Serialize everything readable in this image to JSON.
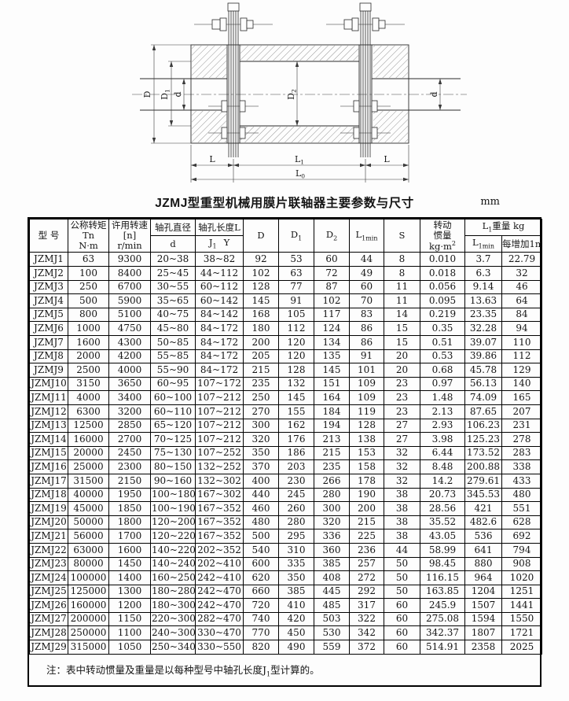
{
  "title": "JZMJ型重型机械用膜片联轴器主要参数与尺寸",
  "unit": "mm",
  "drawing": {
    "dim_D": "D",
    "dim_D1_base": "D",
    "dim_D1_sub": "1",
    "dim_d_left": "d",
    "dim_D2_base": "D",
    "dim_D2_sub": "2",
    "dim_d_right": "d",
    "dim_L_left": "L",
    "dim_L1_base": "L",
    "dim_L1_sub": "1",
    "dim_L_right": "L",
    "dim_L0_base": "L",
    "dim_L0_sub": "0"
  },
  "table": {
    "header": {
      "model": "型 号",
      "torque_line1": "公称转矩",
      "torque_line2": "Tn",
      "torque_line3": "N·m",
      "speed_line1": "许用转速",
      "speed_line2": "[n]",
      "speed_line3": "r/min",
      "bore_dia": "轴孔直径",
      "bore_dia_sub": "d",
      "bore_len": "轴孔长度L",
      "bore_len_j": "J",
      "bore_len_j_sub": "1",
      "bore_len_y": "Y",
      "D": "D",
      "D1_base": "D",
      "D1_sub": "1",
      "D2_base": "D",
      "D2_sub": "2",
      "L1min_base": "L",
      "L1min_sub": "1min",
      "S": "S",
      "inertia_line1": "转动",
      "inertia_line2": "惯量",
      "inertia_unit_base": "kg·m",
      "inertia_unit_sup": "2",
      "weight_group_base": "L",
      "weight_group_sub": "1",
      "weight_group_rest": "重量 kg",
      "weight_min_base": "L",
      "weight_min_sub": "1min",
      "weight_per_m": "每增加1m"
    },
    "rows": [
      [
        "JZMJ1",
        "63",
        "9300",
        "20~38",
        "38~82",
        "92",
        "53",
        "60",
        "44",
        "8",
        "0.010",
        "3.7",
        "22.79"
      ],
      [
        "JZMJ2",
        "100",
        "8400",
        "25~45",
        "44~112",
        "102",
        "63",
        "72",
        "49",
        "8",
        "0.018",
        "6.3",
        "32"
      ],
      [
        "JZMJ3",
        "250",
        "6700",
        "30~55",
        "60~112",
        "128",
        "77",
        "87",
        "60",
        "11",
        "0.056",
        "9.14",
        "46"
      ],
      [
        "JZMJ4",
        "500",
        "5900",
        "35~65",
        "60~142",
        "145",
        "91",
        "102",
        "70",
        "11",
        "0.095",
        "13.63",
        "64"
      ],
      [
        "JZMJ5",
        "800",
        "5100",
        "40~75",
        "84~142",
        "168",
        "105",
        "117",
        "83",
        "14",
        "0.219",
        "23.35",
        "84"
      ],
      [
        "JZMJ6",
        "1000",
        "4750",
        "45~80",
        "84~172",
        "180",
        "112",
        "124",
        "86",
        "15",
        "0.35",
        "32.28",
        "94"
      ],
      [
        "JZMJ7",
        "1600",
        "4300",
        "50~85",
        "84~172",
        "200",
        "120",
        "134",
        "86",
        "15",
        "0.51",
        "39.07",
        "110"
      ],
      [
        "JZMJ8",
        "2000",
        "4200",
        "55~85",
        "84~172",
        "205",
        "120",
        "135",
        "91",
        "20",
        "0.53",
        "39.86",
        "112"
      ],
      [
        "JZMJ9",
        "2500",
        "4000",
        "55~90",
        "84~172",
        "215",
        "128",
        "145",
        "101",
        "20",
        "0.68",
        "45.78",
        "129"
      ],
      [
        "JZMJ10",
        "3150",
        "3650",
        "60~95",
        "107~172",
        "235",
        "132",
        "151",
        "109",
        "23",
        "0.97",
        "56.13",
        "140"
      ],
      [
        "JZMJ11",
        "4000",
        "3400",
        "60~100",
        "107~212",
        "250",
        "145",
        "164",
        "109",
        "23",
        "1.48",
        "74.09",
        "165"
      ],
      [
        "JZMJ12",
        "6300",
        "3200",
        "60~110",
        "107~212",
        "270",
        "155",
        "184",
        "119",
        "23",
        "2.13",
        "87.65",
        "207"
      ],
      [
        "JZMJ13",
        "12500",
        "2850",
        "65~120",
        "107~212",
        "300",
        "162",
        "194",
        "128",
        "27",
        "2.93",
        "106.23",
        "231"
      ],
      [
        "JZMJ14",
        "16000",
        "2700",
        "70~125",
        "107~212",
        "320",
        "176",
        "213",
        "138",
        "27",
        "3.98",
        "125.23",
        "278"
      ],
      [
        "JZMJ15",
        "20000",
        "2450",
        "75~130",
        "107~252",
        "350",
        "186",
        "215",
        "153",
        "32",
        "6.44",
        "173.52",
        "283"
      ],
      [
        "JZMJ16",
        "25000",
        "2300",
        "80~150",
        "132~252",
        "370",
        "203",
        "235",
        "158",
        "32",
        "8.48",
        "200.88",
        "338"
      ],
      [
        "JZMJ17",
        "31500",
        "2150",
        "90~160",
        "132~302",
        "400",
        "230",
        "266",
        "178",
        "32",
        "14.2",
        "279.61",
        "433"
      ],
      [
        "JZMJ18",
        "40000",
        "1950",
        "100~180",
        "167~302",
        "440",
        "245",
        "280",
        "190",
        "38",
        "20.73",
        "345.53",
        "480"
      ],
      [
        "JZMJ19",
        "45000",
        "1850",
        "100~190",
        "167~352",
        "460",
        "260",
        "300",
        "200",
        "38",
        "28.56",
        "421",
        "551"
      ],
      [
        "JZMJ20",
        "50000",
        "1800",
        "120~200",
        "167~352",
        "480",
        "280",
        "320",
        "215",
        "38",
        "35.52",
        "482.6",
        "628"
      ],
      [
        "JZMJ21",
        "56000",
        "1700",
        "120~220",
        "167~352",
        "500",
        "295",
        "336",
        "225",
        "38",
        "43.05",
        "536",
        "692"
      ],
      [
        "JZMJ22",
        "63000",
        "1600",
        "140~220",
        "202~352",
        "540",
        "310",
        "360",
        "236",
        "44",
        "58.99",
        "641",
        "794"
      ],
      [
        "JZMJ23",
        "80000",
        "1450",
        "140~240",
        "202~410",
        "600",
        "335",
        "385",
        "257",
        "50",
        "98.45",
        "880",
        "908"
      ],
      [
        "JZMJ24",
        "100000",
        "1400",
        "160~250",
        "242~410",
        "620",
        "350",
        "408",
        "272",
        "50",
        "116.15",
        "964",
        "1020"
      ],
      [
        "JZMJ25",
        "125000",
        "1300",
        "180~280",
        "242~470",
        "660",
        "385",
        "445",
        "292",
        "50",
        "163.85",
        "1204",
        "1251"
      ],
      [
        "JZMJ26",
        "160000",
        "1200",
        "180~300",
        "242~470",
        "720",
        "410",
        "485",
        "317",
        "60",
        "245.9",
        "1507",
        "1441"
      ],
      [
        "JZMJ27",
        "200000",
        "1150",
        "220~300",
        "282~470",
        "740",
        "420",
        "503",
        "322",
        "60",
        "275.08",
        "1594",
        "1550"
      ],
      [
        "JZMJ28",
        "250000",
        "1100",
        "240~300",
        "330~470",
        "770",
        "450",
        "530",
        "342",
        "60",
        "342.37",
        "1807",
        "1721"
      ],
      [
        "JZMJ29",
        "315000",
        "1050",
        "250~340",
        "330~550",
        "820",
        "490",
        "559",
        "372",
        "60",
        "514.91",
        "2358",
        "2025"
      ]
    ]
  },
  "note": {
    "prefix": "注：表中转动惯量及重量是以每种型号中轴孔长度J",
    "sub": "1",
    "suffix": "型计算的。"
  }
}
